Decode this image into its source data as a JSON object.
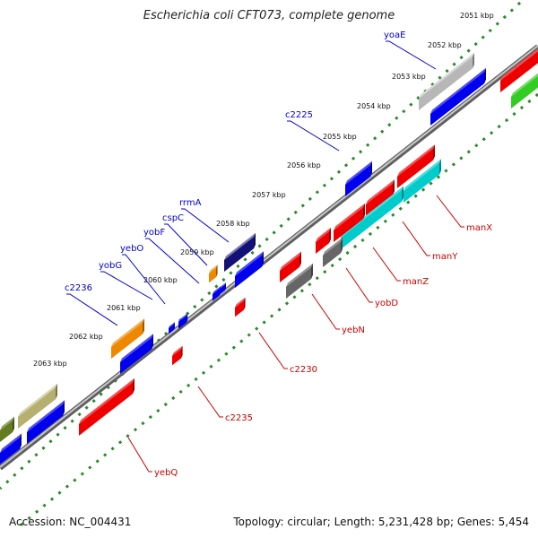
{
  "title": "Escherichia coli CFT073, complete genome",
  "footer": {
    "accession": "Accession: NC_004431",
    "topology": "Topology: circular; Length: 5,231,428 bp; Genes: 5,454"
  },
  "colors": {
    "forward_label": "#0000cc",
    "reverse_label": "#cc0000",
    "backbone": "#888888",
    "dots": "#2a8a2a"
  },
  "scale_ticks": [
    "2051 kbp",
    "2052 kbp",
    "2053 kbp",
    "2054 kbp",
    "2055 kbp",
    "2056 kbp",
    "2057 kbp",
    "2058 kbp",
    "2059 kbp",
    "2060 kbp",
    "2061 kbp",
    "2062 kbp",
    "2063 kbp"
  ],
  "forward_gene_labels": [
    "yoaE",
    "c2225",
    "rrmA",
    "cspC",
    "yobF",
    "yebO",
    "yobG",
    "c2236"
  ],
  "reverse_gene_labels": [
    "manX",
    "manY",
    "manZ",
    "yobD",
    "yebN",
    "c2230",
    "c2235",
    "yebQ"
  ]
}
